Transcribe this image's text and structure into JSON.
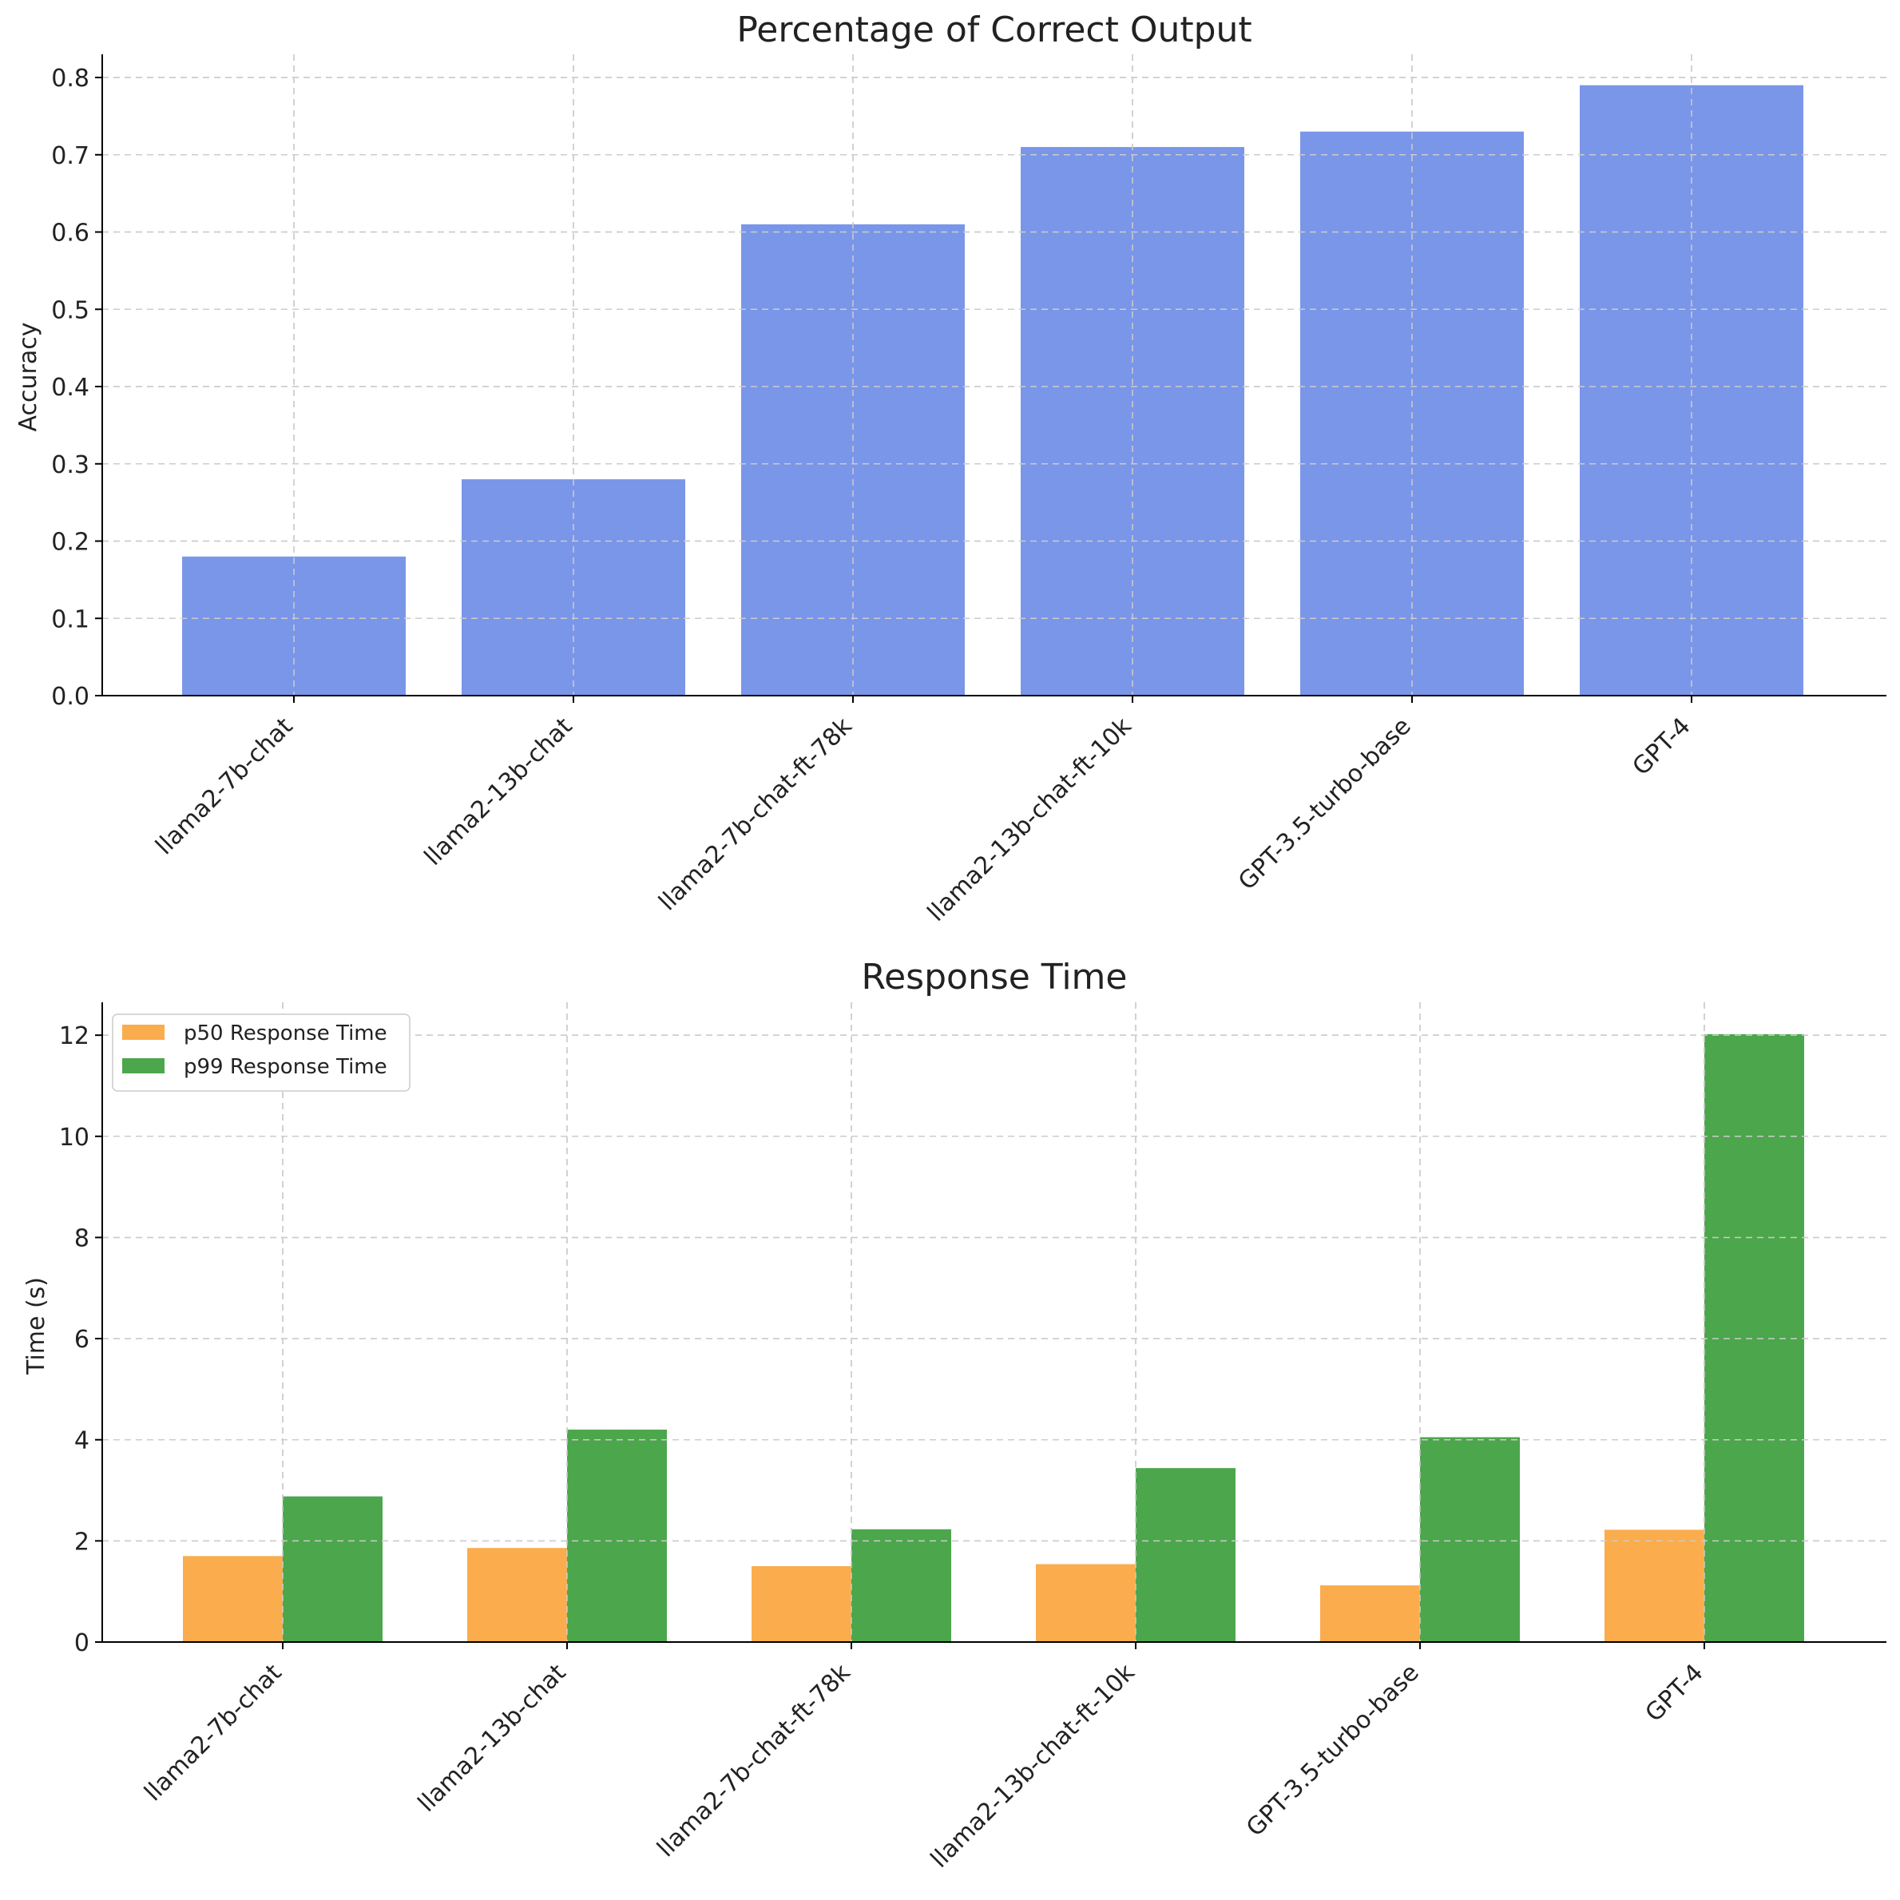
{
  "chart_data": [
    {
      "type": "bar",
      "title": "Percentage of Correct Output",
      "xlabel": "",
      "ylabel": "Accuracy",
      "ylim": [
        0,
        0.83
      ],
      "yticks": [
        "0.0",
        "0.1",
        "0.2",
        "0.3",
        "0.4",
        "0.5",
        "0.6",
        "0.7",
        "0.8"
      ],
      "grid": true,
      "categories": [
        "llama2-7b-chat",
        "llama2-13b-chat",
        "llama2-7b-chat-ft-78k",
        "llama2-13b-chat-ft-10k",
        "GPT-3.5-turbo-base",
        "GPT-4"
      ],
      "series": [
        {
          "name": "Accuracy",
          "color": "#7a96e8",
          "values": [
            0.18,
            0.28,
            0.61,
            0.71,
            0.73,
            0.79
          ]
        }
      ]
    },
    {
      "type": "bar",
      "title": "Response Time",
      "xlabel": "",
      "ylabel": "Time (s)",
      "ylim": [
        0,
        12.65
      ],
      "yticks": [
        "0",
        "2",
        "4",
        "6",
        "8",
        "10",
        "12"
      ],
      "grid": true,
      "legend": "top-left",
      "categories": [
        "llama2-7b-chat",
        "llama2-13b-chat",
        "llama2-7b-chat-ft-78k",
        "llama2-13b-chat-ft-10k",
        "GPT-3.5-turbo-base",
        "GPT-4"
      ],
      "series": [
        {
          "name": "p50 Response Time",
          "color": "#fbac4c",
          "values": [
            1.7,
            1.86,
            1.5,
            1.54,
            1.12,
            2.22
          ]
        },
        {
          "name": "p99 Response Time",
          "color": "#4ca64c",
          "values": [
            2.88,
            4.2,
            2.23,
            3.44,
            4.05,
            12.02
          ]
        }
      ]
    }
  ]
}
